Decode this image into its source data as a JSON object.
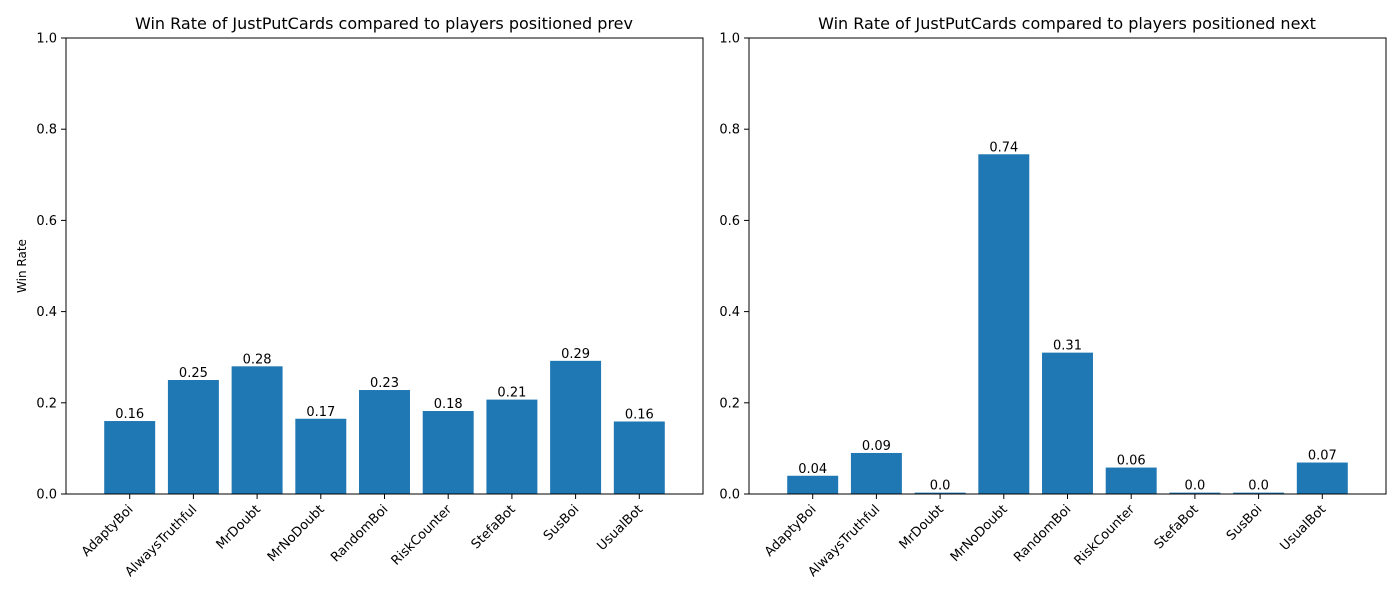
{
  "chart_data": [
    {
      "type": "bar",
      "title": "Win Rate of JustPutCards compared to players positioned prev",
      "xlabel": "",
      "ylabel": "Win Rate",
      "ylim": [
        0,
        1
      ],
      "yticks": [
        "0.0",
        "0.2",
        "0.4",
        "0.6",
        "0.8",
        "1.0"
      ],
      "grid": false,
      "color": "#1f77b4",
      "categories": [
        "AdaptyBoi",
        "AlwaysTruthful",
        "MrDoubt",
        "MrNoDoubt",
        "RandomBoi",
        "RiskCounter",
        "StefaBot",
        "SusBoi",
        "UsualBot"
      ],
      "values": [
        0.16,
        0.25,
        0.28,
        0.165,
        0.228,
        0.182,
        0.207,
        0.292,
        0.159
      ],
      "value_labels": [
        "0.16",
        "0.25",
        "0.28",
        "0.17",
        "0.23",
        "0.18",
        "0.21",
        "0.29",
        "0.16"
      ]
    },
    {
      "type": "bar",
      "title": "Win Rate of JustPutCards compared to players positioned next",
      "xlabel": "",
      "ylabel": "",
      "ylim": [
        0,
        1
      ],
      "yticks": [
        "0.0",
        "0.2",
        "0.4",
        "0.6",
        "0.8",
        "1.0"
      ],
      "grid": false,
      "color": "#1f77b4",
      "categories": [
        "AdaptyBoi",
        "AlwaysTruthful",
        "MrDoubt",
        "MrNoDoubt",
        "RandomBoi",
        "RiskCounter",
        "StefaBot",
        "SusBoi",
        "UsualBot"
      ],
      "values": [
        0.04,
        0.09,
        0.003,
        0.745,
        0.31,
        0.058,
        0.003,
        0.003,
        0.069
      ],
      "value_labels": [
        "0.04",
        "0.09",
        "0.0",
        "0.74",
        "0.31",
        "0.06",
        "0.0",
        "0.0",
        "0.07"
      ]
    }
  ]
}
